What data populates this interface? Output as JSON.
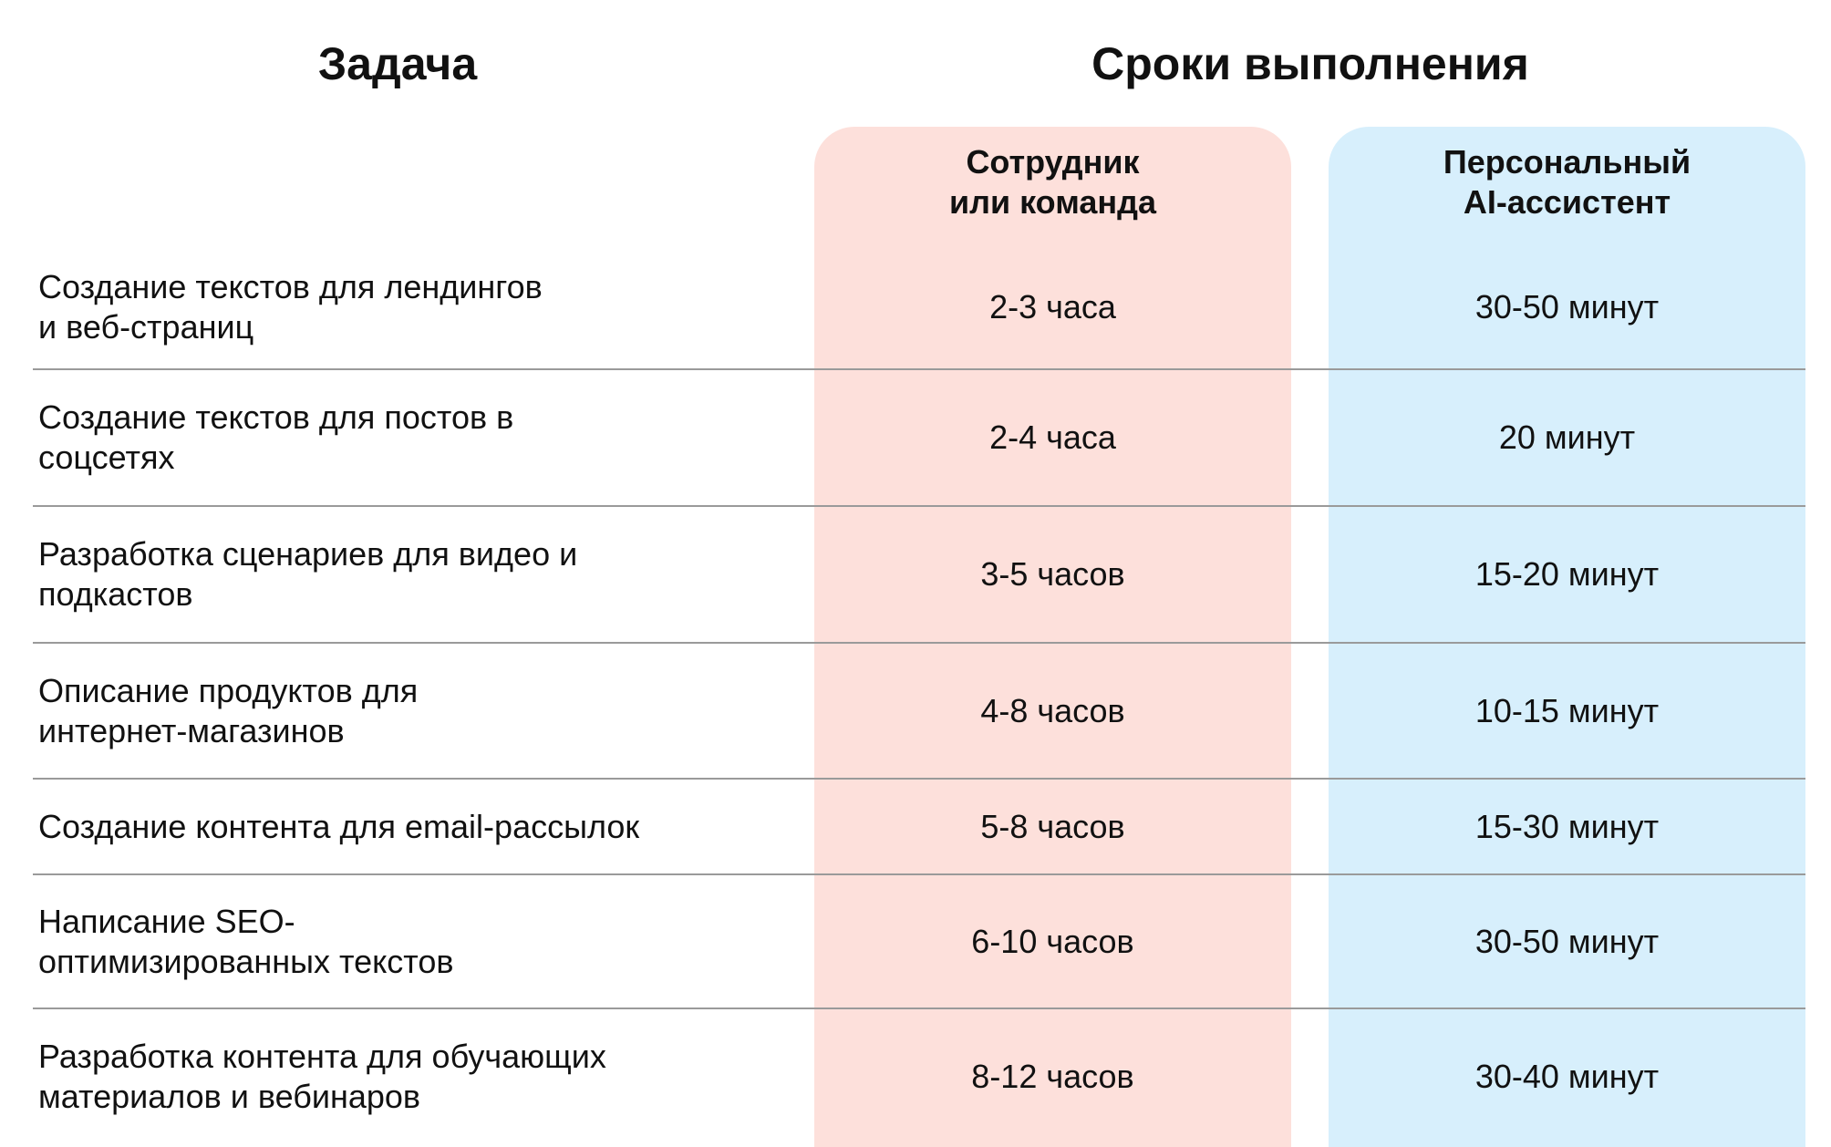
{
  "headers": {
    "task": "Задача",
    "timeline": "Сроки выполнения"
  },
  "columns": {
    "employee": {
      "line1": "Сотрудник",
      "line2": "или команда"
    },
    "ai": {
      "line1": "Персональный",
      "line2": "AI-ассистент"
    }
  },
  "colors": {
    "employee_bg": "#fde0db",
    "ai_bg": "#d7effc",
    "divider": "#9a9a9a",
    "text": "#111111"
  },
  "rows": [
    {
      "task": "Создание текстов для лендингов\nи веб-страниц",
      "employee": "2-3 часа",
      "ai": "30-50 минут"
    },
    {
      "task": "Создание текстов для постов в\nсоцсетях",
      "employee": "2-4 часа",
      "ai": "20 минут"
    },
    {
      "task": "Разработка сценариев для видео и\nподкастов",
      "employee": "3-5 часов",
      "ai": "15-20 минут"
    },
    {
      "task": "Описание продуктов для\nинтернет-магазинов",
      "employee": "4-8 часов",
      "ai": "10-15 минут"
    },
    {
      "task": "Создание контента для email-рассылок",
      "employee": "5-8 часов",
      "ai": "15-30 минут"
    },
    {
      "task": "Написание SEO-\nоптимизированных текстов",
      "employee": "6-10 часов",
      "ai": "30-50 минут"
    },
    {
      "task": "Разработка контента для обучающих\nматериалов и вебинаров",
      "employee": "8-12 часов",
      "ai": "30-40 минут"
    }
  ]
}
